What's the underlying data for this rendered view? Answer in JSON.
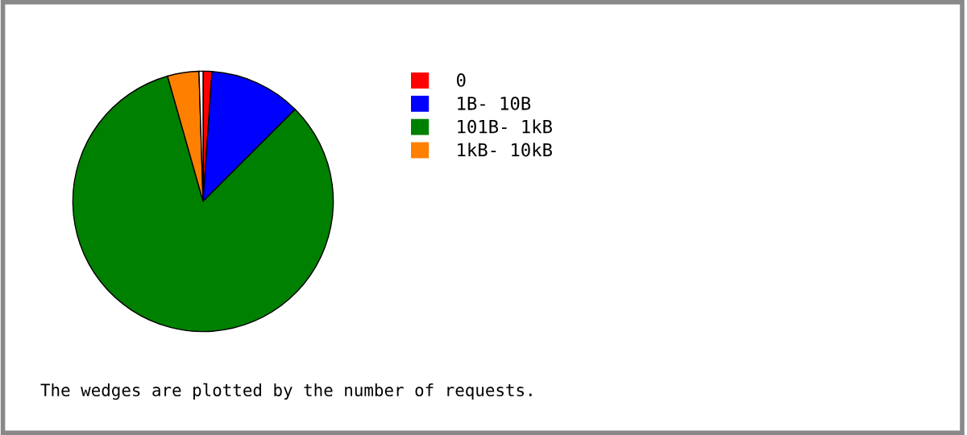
{
  "chart_data": {
    "type": "pie",
    "categories": [
      "0",
      "1B- 10B",
      "101B- 1kB",
      "1kB- 10kB",
      null
    ],
    "values": [
      1.1,
      11.4,
      83.1,
      3.9,
      0.5
    ],
    "colors": [
      "#ff0000",
      "#0000ff",
      "#008000",
      "#ff8000",
      "#ffffff"
    ],
    "legend": "right",
    "annotations": [
      "The wedges are plotted by the number of requests."
    ]
  }
}
